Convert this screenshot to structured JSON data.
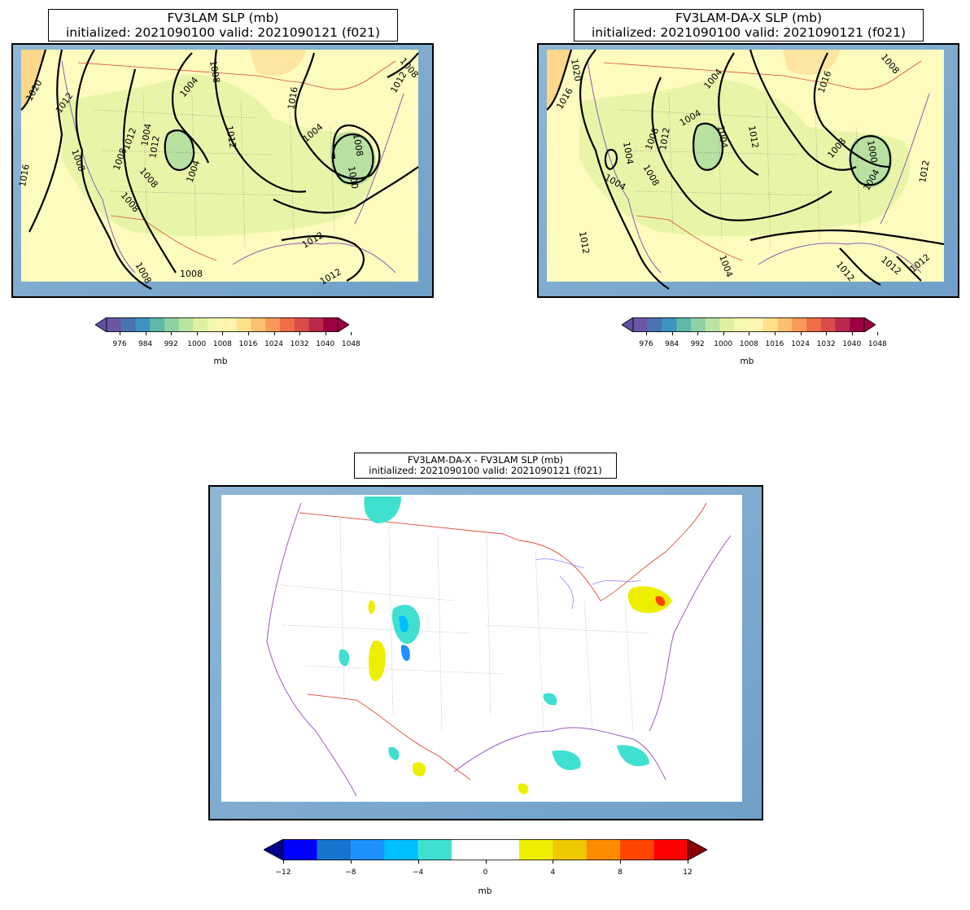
{
  "panels": {
    "fv3lam": {
      "title_line1": "FV3LAM SLP (mb)",
      "title_line2": "initialized: 2021090100 valid: 2021090121 (f021)",
      "contour_labels": [
        "1020",
        "1012",
        "1004",
        "1008",
        "1008",
        "1004",
        "1016",
        "1008",
        "1016",
        "1008",
        "1012",
        "1008",
        "1012",
        "1012",
        "1004",
        "1004",
        "1008",
        "1012",
        "1000",
        "1008",
        "1008",
        "1012",
        "1012",
        "1008"
      ]
    },
    "fv3lam_da_x": {
      "title_line1": "FV3LAM-DA-X SLP (mb)",
      "title_line2": "initialized: 2021090100 valid: 2021090121 (f021)",
      "contour_labels": [
        "1020",
        "1016",
        "1004",
        "1016",
        "1008",
        "1004",
        "1004",
        "1004",
        "1008",
        "1012",
        "1004",
        "1012",
        "1008",
        "1008",
        "1004",
        "1000",
        "1012",
        "1012",
        "1004",
        "1012",
        "1012",
        "1012"
      ]
    },
    "difference": {
      "title_line1": "FV3LAM-DA-X - FV3LAM SLP (mb)",
      "title_line2": "initialized: 2021090100 valid: 2021090121 (f021)"
    }
  },
  "colorbars": {
    "slp": {
      "ticks": [
        "976",
        "984",
        "992",
        "1000",
        "1008",
        "1016",
        "1024",
        "1032",
        "1040",
        "1048"
      ],
      "unit": "mb",
      "colors": [
        "#6a56a4",
        "#4a73b4",
        "#3c93c2",
        "#5fb7a8",
        "#8fd0a4",
        "#b9e3a0",
        "#dff1a0",
        "#f4f8b0",
        "#fff5b0",
        "#fee08b",
        "#fdc070",
        "#f99a58",
        "#f06c45",
        "#da4b4a",
        "#bb2a4d",
        "#9e0142"
      ],
      "under": "#5e4fa2",
      "over": "#9e0142"
    },
    "diff": {
      "ticks": [
        "−12",
        "−8",
        "−4",
        "0",
        "4",
        "8",
        "12"
      ],
      "unit": "mb",
      "colors": [
        "#0000ff",
        "#1874cd",
        "#1e90ff",
        "#00bfff",
        "#40e0d0",
        "#ffffff",
        "#ffffff",
        "#eeee00",
        "#eec900",
        "#ff8c00",
        "#ff4500",
        "#ff0000"
      ],
      "under": "#00008b",
      "over": "#8b0000"
    }
  }
}
